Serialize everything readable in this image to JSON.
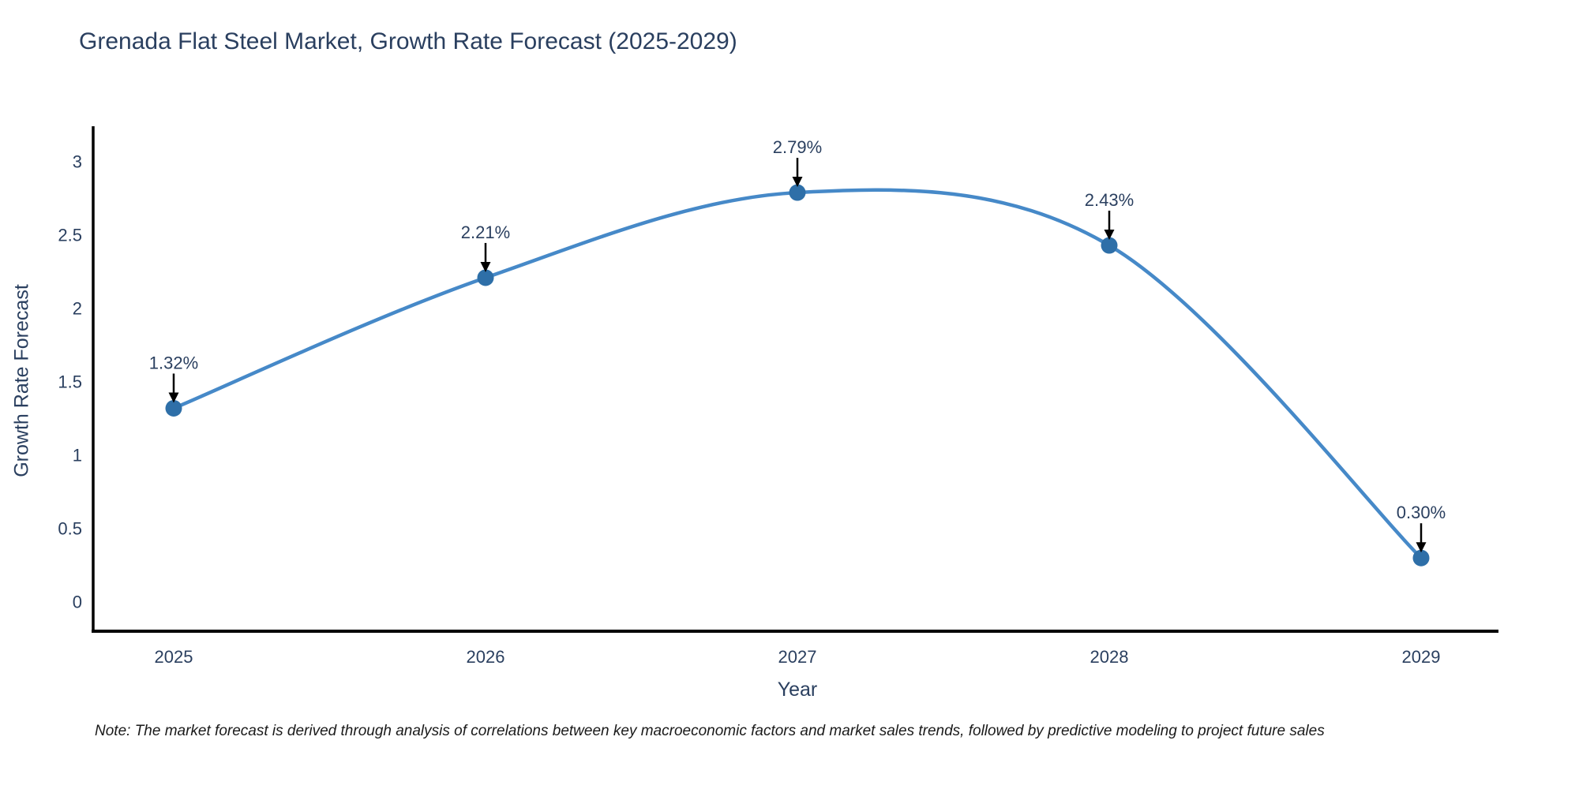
{
  "footnote": "Note: The market forecast is derived through analysis of correlations between key macroeconomic factors and market sales trends, followed by predictive modeling to project future sales",
  "chart_data": {
    "type": "line",
    "title": "Grenada Flat Steel Market, Growth Rate Forecast (2025-2029)",
    "xlabel": "Year",
    "ylabel": "Growth Rate Forecast",
    "categories": [
      "2025",
      "2026",
      "2027",
      "2028",
      "2029"
    ],
    "series": [
      {
        "name": "Growth Rate Forecast",
        "values": [
          1.32,
          2.21,
          2.79,
          2.43,
          0.3
        ],
        "point_labels": [
          "1.32%",
          "2.21%",
          "2.79%",
          "2.43%",
          "0.30%"
        ]
      }
    ],
    "line_shape": "spline",
    "markers": true,
    "yticks": [
      0,
      0.5,
      1,
      1.5,
      2,
      2.5,
      3
    ],
    "ytick_labels": [
      "0",
      "0.5",
      "1",
      "1.5",
      "2",
      "2.5",
      "3"
    ],
    "ylim": [
      -0.2,
      3.3
    ],
    "grid": false,
    "legend_position": "none",
    "colors": {
      "line": "#4689c8",
      "marker": "#2e6fa8",
      "axis_line": "#000000",
      "tick_text": "#2a3f5f",
      "annotation_text": "#2a3f5f",
      "annotation_arrow": "#000000",
      "background": "#ffffff"
    }
  }
}
